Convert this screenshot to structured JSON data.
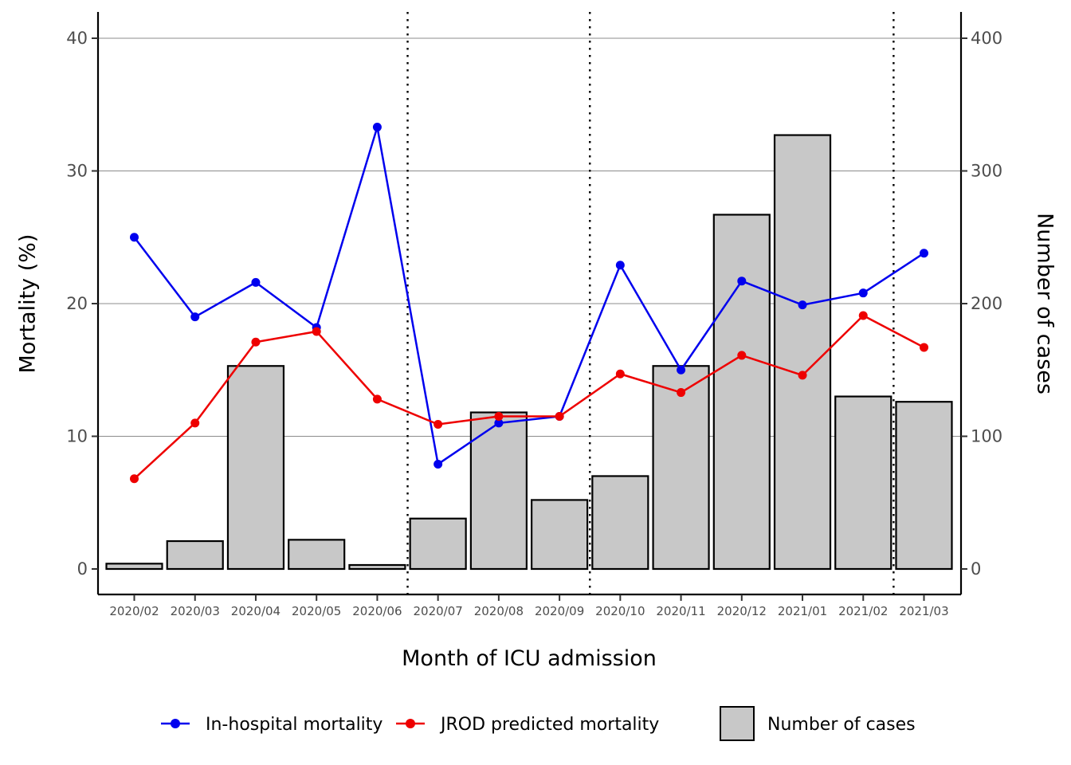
{
  "chart_data": {
    "type": "bar+line",
    "categories": [
      "2020/02",
      "2020/03",
      "2020/04",
      "2020/05",
      "2020/06",
      "2020/07",
      "2020/08",
      "2020/09",
      "2020/10",
      "2020/11",
      "2020/12",
      "2021/01",
      "2021/02",
      "2021/03"
    ],
    "bars": {
      "name": "Number of cases",
      "values": [
        4,
        21,
        153,
        22,
        3,
        38,
        118,
        52,
        70,
        153,
        267,
        327,
        130,
        126
      ],
      "color": "#c8c8c8"
    },
    "series": [
      {
        "name": "In-hospital mortality",
        "color": "#0000ee",
        "values": [
          25.0,
          19.0,
          21.6,
          18.2,
          33.3,
          7.9,
          11.0,
          11.5,
          22.9,
          15.0,
          21.7,
          19.9,
          20.8,
          23.8
        ]
      },
      {
        "name": "JROD predicted mortality",
        "color": "#ee0000",
        "values": [
          6.8,
          11.0,
          17.1,
          17.9,
          12.8,
          10.9,
          11.5,
          11.5,
          14.7,
          13.3,
          16.1,
          14.6,
          19.1,
          16.7
        ]
      }
    ],
    "ylabel": "Mortality (%)",
    "y2label": "Number of cases",
    "xlabel": "Month of ICU admission",
    "ylim": [
      0,
      40
    ],
    "yticks": [
      "0",
      "10",
      "20",
      "30",
      "40"
    ],
    "y2lim": [
      0,
      400
    ],
    "y2ticks": [
      "0",
      "100",
      "200",
      "300",
      "400"
    ],
    "vlines_between": [
      "2020/06|2020/07",
      "2020/09|2020/10",
      "2021/02|2021/03"
    ],
    "grid": "horizontal",
    "legend_position": "bottom"
  }
}
